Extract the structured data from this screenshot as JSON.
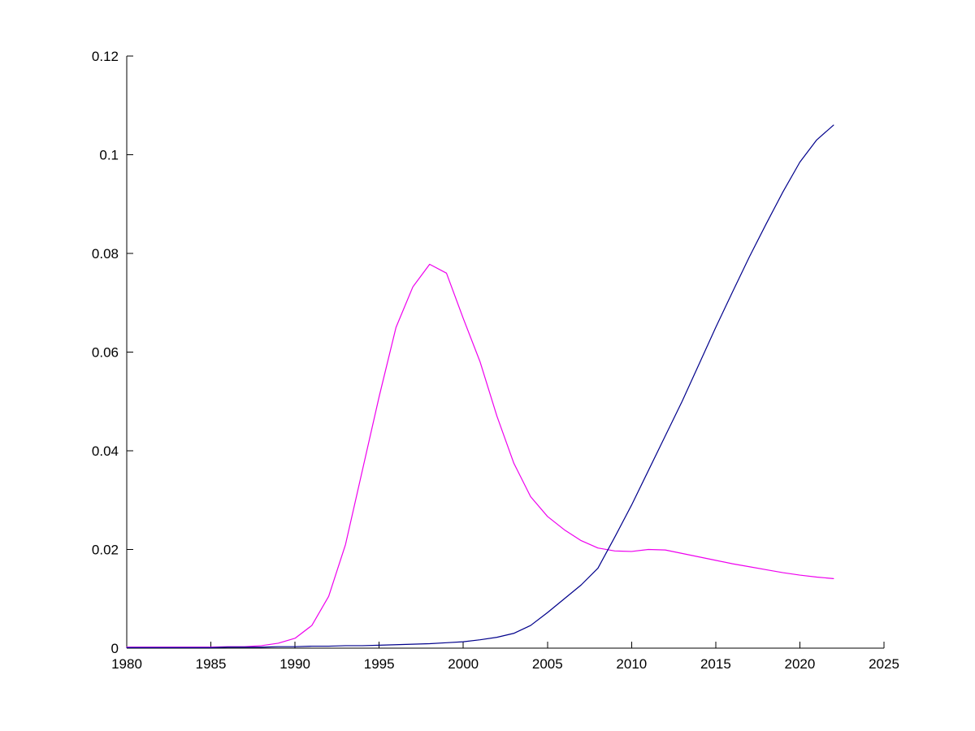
{
  "chart_data": {
    "type": "line",
    "title": "",
    "xlabel": "",
    "ylabel": "",
    "grid": false,
    "legend": null,
    "background": "#FFFFFF",
    "axis_color": "#000000",
    "xlim": [
      1980,
      2025
    ],
    "ylim": [
      0,
      0.12
    ],
    "xticks": {
      "values": [
        1980,
        1985,
        1990,
        1995,
        2000,
        2005,
        2010,
        2015,
        2020,
        2025
      ],
      "labels": [
        "1980",
        "1985",
        "1990",
        "1995",
        "2000",
        "2005",
        "2010",
        "2015",
        "2020",
        "2025"
      ]
    },
    "yticks": {
      "values": [
        0,
        0.02,
        0.04,
        0.06,
        0.08,
        0.1,
        0.12
      ],
      "labels": [
        "0",
        "0.02",
        "0.04",
        "0.06",
        "0.08",
        "0.1",
        "0.12"
      ]
    },
    "x": [
      1980,
      1981,
      1982,
      1983,
      1984,
      1985,
      1986,
      1987,
      1988,
      1989,
      1990,
      1991,
      1992,
      1993,
      1994,
      1995,
      1996,
      1997,
      1998,
      1999,
      2000,
      2001,
      2002,
      2003,
      2004,
      2005,
      2006,
      2007,
      2008,
      2009,
      2010,
      2011,
      2012,
      2013,
      2014,
      2015,
      2016,
      2017,
      2018,
      2019,
      2020,
      2021,
      2022
    ],
    "series": [
      {
        "name": "magenta",
        "color": "#EE00EE",
        "values": [
          0.0002,
          0.0002,
          0.0002,
          0.0002,
          0.0002,
          0.0002,
          0.0003,
          0.0003,
          0.0005,
          0.001,
          0.002,
          0.0046,
          0.0105,
          0.021,
          0.036,
          0.051,
          0.065,
          0.0732,
          0.0778,
          0.076,
          0.0668,
          0.058,
          0.047,
          0.0375,
          0.0307,
          0.0267,
          0.024,
          0.0218,
          0.0203,
          0.0197,
          0.0196,
          0.02,
          0.0199,
          0.0192,
          0.0185,
          0.0178,
          0.0171,
          0.0165,
          0.0159,
          0.0153,
          0.0148,
          0.0144,
          0.0141
        ]
      },
      {
        "name": "navy",
        "color": "#00008B",
        "values": [
          0.0001,
          0.0001,
          0.0001,
          0.0001,
          0.0001,
          0.0001,
          0.0002,
          0.0002,
          0.0002,
          0.0003,
          0.0003,
          0.0004,
          0.0004,
          0.0005,
          0.0005,
          0.0006,
          0.0007,
          0.0008,
          0.0009,
          0.0011,
          0.0013,
          0.0017,
          0.0022,
          0.003,
          0.0046,
          0.0072,
          0.01,
          0.0128,
          0.0162,
          0.0225,
          0.029,
          0.036,
          0.043,
          0.05,
          0.0575,
          0.065,
          0.0722,
          0.0793,
          0.086,
          0.0925,
          0.0985,
          0.103,
          0.106
        ]
      }
    ],
    "annotations": {
      "magenta_peak": {
        "year": 1998,
        "value": 0.0778
      },
      "crossover": {
        "year": 2008.6,
        "value": 0.02
      },
      "navy_end": {
        "year": 2022,
        "value": 0.106
      },
      "magenta_end": {
        "year": 2022,
        "value": 0.0141
      }
    }
  }
}
